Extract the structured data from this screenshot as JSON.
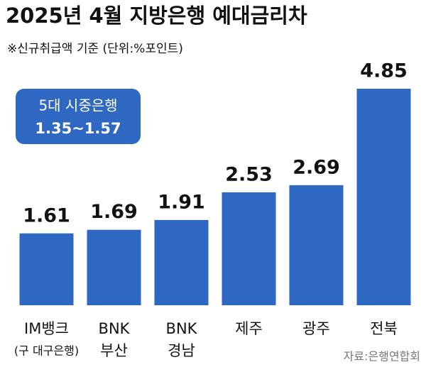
{
  "chart_data": {
    "type": "bar",
    "title": "2025년 4월 지방은행 예대금리차",
    "subtitle": "※신규취급액 기준  (단위:%포인트)",
    "annotation": [
      "5대 시중은행",
      "1.35~1.57"
    ],
    "source": "자료:은행연합회",
    "categories": [
      [
        "IM뱅크",
        "(구 대구은행)"
      ],
      [
        "BNK",
        "부산"
      ],
      [
        "BNK",
        "경남"
      ],
      [
        "제주"
      ],
      [
        "광주"
      ],
      [
        "전북"
      ]
    ],
    "values": [
      1.61,
      1.69,
      1.91,
      2.53,
      2.69,
      4.85
    ],
    "color": "#2f68c2"
  }
}
